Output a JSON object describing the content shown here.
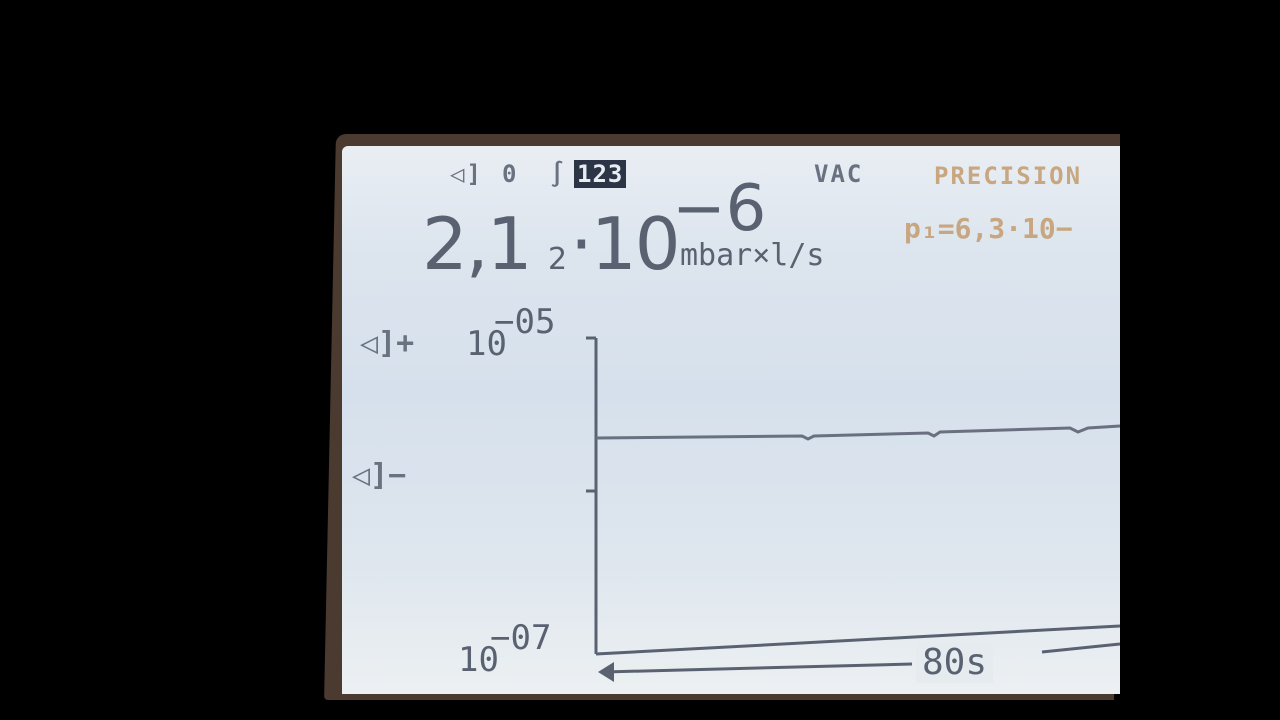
{
  "status_bar": {
    "speaker_symbol": "◁",
    "zero_label": "0",
    "integral_symbol": "∫",
    "range_label": "123",
    "mode_vac": "VAC",
    "mode_precision": "PRECISION"
  },
  "reading": {
    "mantissa": "2,1",
    "subscript": "2",
    "times": "·10",
    "exponent": "−6",
    "unit": "mbar×l/s"
  },
  "side_reading": {
    "text": "p₁=6,3·10−"
  },
  "graph": {
    "alarm_plus_label": "◁]+",
    "alarm_minus_label": "◁]−",
    "y_top_base": "10",
    "y_top_exp": "−05",
    "y_bottom_base": "10",
    "y_bottom_exp": "−07",
    "time_window": "80s"
  },
  "colors": {
    "lcd_background": "#dde5ee",
    "lcd_text": "#5a6272",
    "accent_amber": "#c8a680",
    "inverted_bg": "#2c3546"
  }
}
